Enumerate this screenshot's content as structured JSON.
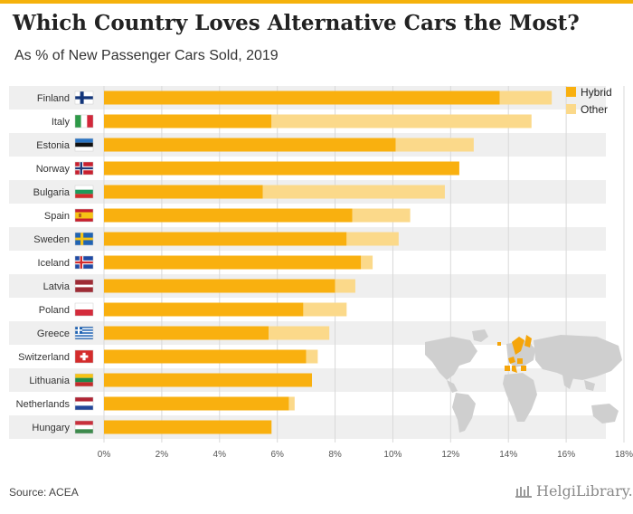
{
  "header": {
    "title": "Which Country Loves Alternative Cars the Most?",
    "subtitle": "As % of New Passenger Cars Sold, 2019"
  },
  "footer": {
    "source": "Source: ACEA",
    "brand": "HelgiLibrary."
  },
  "colors": {
    "hybrid": "#f9b00f",
    "other": "#fbd98a",
    "row_shade": "#efefef",
    "map_land": "#cfcfcf",
    "map_highlight": "#f5a50a",
    "accent_bar": "#f5b20b"
  },
  "chart_data": {
    "type": "bar",
    "orientation": "horizontal",
    "stacked": true,
    "title": "Which Country Loves Alternative Cars the Most?",
    "subtitle": "As % of New Passenger Cars Sold, 2019",
    "categories": [
      "Finland",
      "Italy",
      "Estonia",
      "Norway",
      "Bulgaria",
      "Spain",
      "Sweden",
      "Iceland",
      "Latvia",
      "Poland",
      "Greece",
      "Switzerland",
      "Lithuania",
      "Netherlands",
      "Hungary"
    ],
    "flags": [
      "finland",
      "italy",
      "estonia",
      "norway",
      "bulgaria",
      "spain",
      "sweden",
      "iceland",
      "latvia",
      "poland",
      "greece",
      "switzerland",
      "lithuania",
      "netherlands",
      "hungary"
    ],
    "series": [
      {
        "name": "Hybrid",
        "values": [
          13.7,
          5.8,
          10.1,
          12.3,
          5.5,
          8.6,
          8.4,
          8.9,
          8.0,
          6.9,
          5.7,
          7.0,
          7.2,
          6.4,
          5.8
        ]
      },
      {
        "name": "Other",
        "values": [
          1.8,
          9.0,
          2.7,
          0.0,
          6.3,
          2.0,
          1.8,
          0.4,
          0.7,
          1.5,
          2.1,
          0.4,
          0.0,
          0.2,
          0.0
        ]
      }
    ],
    "xlim": [
      0,
      18
    ],
    "xticks": [
      0,
      2,
      4,
      6,
      8,
      10,
      12,
      14,
      16,
      18
    ],
    "xtick_labels": [
      "0%",
      "2%",
      "4%",
      "6%",
      "8%",
      "10%",
      "12%",
      "14%",
      "16%",
      "18%"
    ],
    "xlabel": "",
    "ylabel": "",
    "grid": true,
    "legend": {
      "position": "top-right",
      "entries": [
        "Hybrid",
        "Other"
      ]
    }
  }
}
